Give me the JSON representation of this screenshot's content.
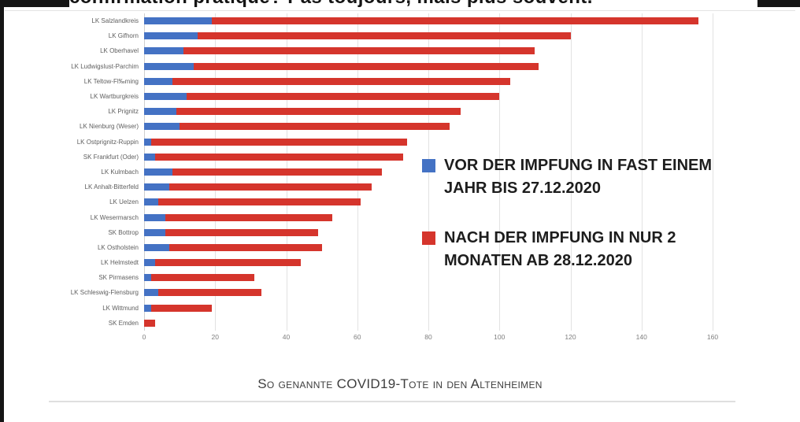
{
  "page": {
    "top_cropped_text": "confirmation pratique? Pas toujours, mais plus souvent."
  },
  "chart_data": {
    "type": "bar",
    "orientation": "horizontal",
    "stacked": true,
    "title": "So genannte COVID19-Tote in den Altenheimen",
    "categories": [
      "LK Salzlandkreis",
      "LK Gifhorn",
      "LK Oberhavel",
      "LK Ludwigslust-Parchim",
      "LK Teltow-Fl‰ming",
      "LK Wartburgkreis",
      "LK Prignitz",
      "LK Nienburg (Weser)",
      "LK Ostprignitz-Ruppin",
      "SK Frankfurt (Oder)",
      "LK Kulmbach",
      "LK Anhalt-Bitterfeld",
      "LK Uelzen",
      "LK Wesermarsch",
      "SK Bottrop",
      "LK Ostholstein",
      "LK Helmstedt",
      "SK Pirmasens",
      "LK Schleswig-Flensburg",
      "LK Wittmund",
      "SK Emden"
    ],
    "series": [
      {
        "name": "VOR DER IMPFUNG IN FAST EINEM\nJAHR BIS 27.12.2020",
        "color": "#4472C4",
        "values": [
          19,
          15,
          11,
          14,
          8,
          12,
          9,
          10,
          2,
          3,
          8,
          7,
          4,
          6,
          6,
          7,
          3,
          2,
          4,
          2,
          0
        ]
      },
      {
        "name": "NACH DER IMPFUNG IN NUR 2\nMONATEN AB 28.12.2020",
        "color": "#D5352C",
        "values": [
          137,
          105,
          99,
          97,
          95,
          88,
          80,
          76,
          72,
          70,
          59,
          57,
          57,
          47,
          43,
          43,
          41,
          29,
          29,
          17,
          3
        ]
      }
    ],
    "totals": [
      156,
      120,
      110,
      111,
      103,
      100,
      89,
      86,
      74,
      73,
      67,
      64,
      61,
      53,
      49,
      50,
      44,
      31,
      33,
      19,
      3
    ],
    "x_ticks": [
      0,
      20,
      40,
      60,
      80,
      100,
      120,
      140,
      160
    ],
    "xlim": [
      0,
      160
    ],
    "grid": true,
    "legend_position": "inside-center-right",
    "colors": {
      "vor_blue": "#4472C4",
      "nach_red": "#D5352C",
      "axis_text": "#7f7f7f",
      "category_text": "#5f5f5f",
      "frame_black": "#151515"
    }
  }
}
